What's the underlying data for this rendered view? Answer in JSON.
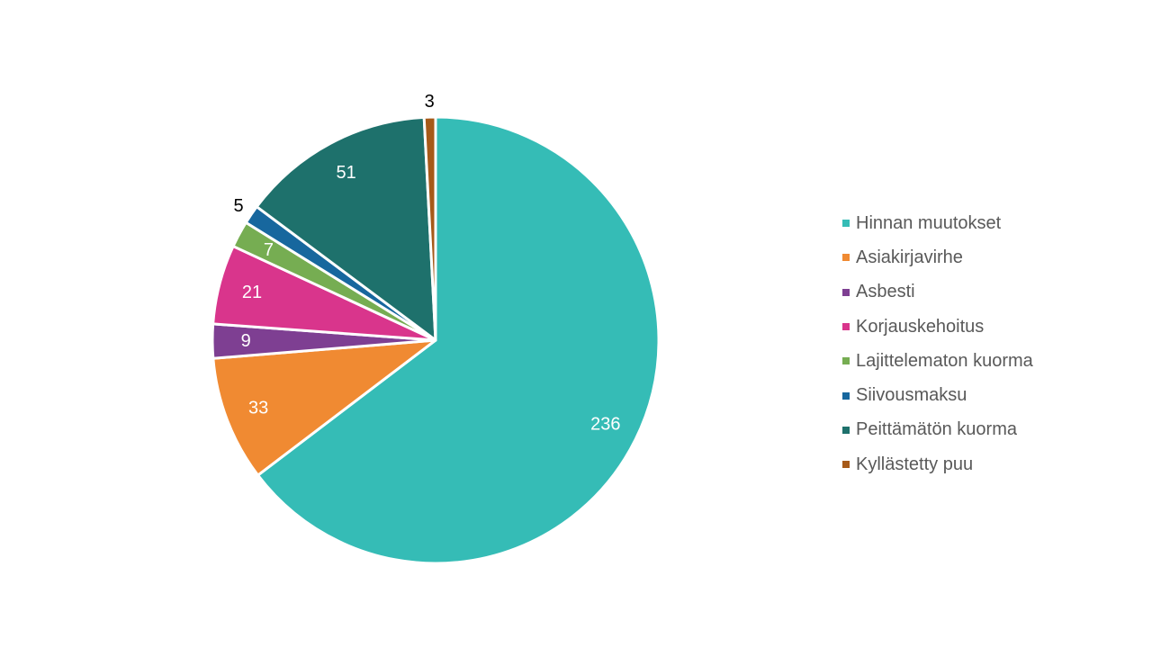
{
  "chart_data": {
    "type": "pie",
    "title": "",
    "legend_position": "right",
    "series": [
      {
        "slices": [
          {
            "label": "Hinnan muutokset",
            "value": 236,
            "color": "#35bcb6",
            "label_color": "#ffffff",
            "label_placement": "inside"
          },
          {
            "label": "Asiakirjavirhe",
            "value": 33,
            "color": "#f08a32",
            "label_color": "#ffffff",
            "label_placement": "inside"
          },
          {
            "label": "Asbesti",
            "value": 9,
            "color": "#7e3f92",
            "label_color": "#ffffff",
            "label_placement": "inside"
          },
          {
            "label": "Korjauskehoitus",
            "value": 21,
            "color": "#d9358c",
            "label_color": "#ffffff",
            "label_placement": "inside"
          },
          {
            "label": "Lajittelematon kuorma",
            "value": 7,
            "color": "#76ad52",
            "label_color": "#ffffff",
            "label_placement": "inside"
          },
          {
            "label": "Siivousmaksu",
            "value": 5,
            "color": "#17679e",
            "label_color": "#000000",
            "label_placement": "outside"
          },
          {
            "label": "Peittämätön kuorma",
            "value": 51,
            "color": "#1e716c",
            "label_color": "#ffffff",
            "label_placement": "inside"
          },
          {
            "label": "Kyllästetty puu",
            "value": 3,
            "color": "#a65a19",
            "label_color": "#000000",
            "label_placement": "outside"
          }
        ]
      }
    ]
  }
}
